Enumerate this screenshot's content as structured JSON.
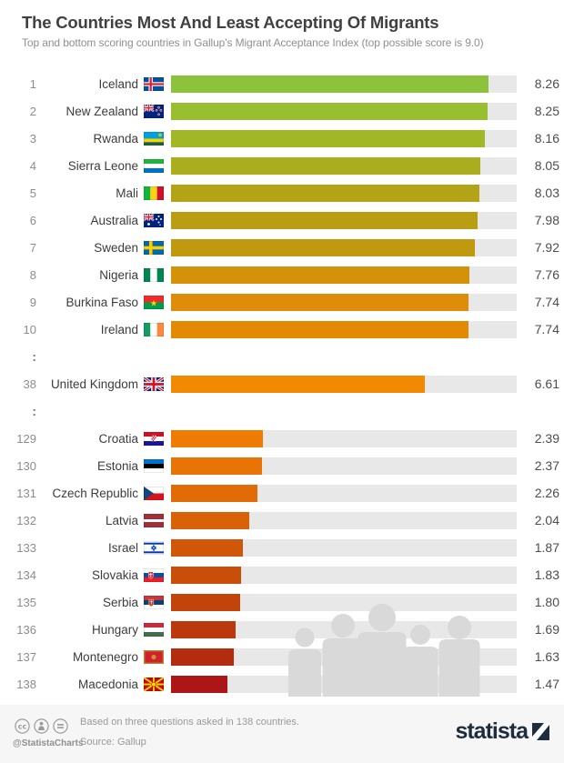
{
  "header": {
    "title": "The Countries Most And Least Accepting Of Migrants",
    "subtitle": "Top and bottom scoring countries in Gallup's Migrant Acceptance Index (top possible score is 9.0)"
  },
  "chart": {
    "max_value": 9.0,
    "track_color": "#e8e8e8",
    "rows": [
      {
        "rank": "1",
        "country": "Iceland",
        "flag": "iceland",
        "value": 8.26,
        "label": "8.26",
        "color": "#8dc33c"
      },
      {
        "rank": "2",
        "country": "New Zealand",
        "flag": "newzealand",
        "value": 8.25,
        "label": "8.25",
        "color": "#97bf2f"
      },
      {
        "rank": "3",
        "country": "Rwanda",
        "flag": "rwanda",
        "value": 8.16,
        "label": "8.16",
        "color": "#a1b725"
      },
      {
        "rank": "4",
        "country": "Sierra Leone",
        "flag": "sierraleone",
        "value": 8.05,
        "label": "8.05",
        "color": "#aaad1d"
      },
      {
        "rank": "5",
        "country": "Mali",
        "flag": "mali",
        "value": 8.03,
        "label": "8.03",
        "color": "#b2a317"
      },
      {
        "rank": "6",
        "country": "Australia",
        "flag": "australia",
        "value": 7.98,
        "label": "7.98",
        "color": "#b99d12"
      },
      {
        "rank": "7",
        "country": "Sweden",
        "flag": "sweden",
        "value": 7.92,
        "label": "7.92",
        "color": "#c0990e"
      },
      {
        "rank": "8",
        "country": "Nigeria",
        "flag": "nigeria",
        "value": 7.76,
        "label": "7.76",
        "color": "#d4920b"
      },
      {
        "rank": "9",
        "country": "Burkina Faso",
        "flag": "burkinafaso",
        "value": 7.74,
        "label": "7.74",
        "color": "#dd8d07"
      },
      {
        "rank": "10",
        "country": "Ireland",
        "flag": "ireland",
        "value": 7.74,
        "label": "7.74",
        "color": "#e38a05"
      },
      {
        "separator": true
      },
      {
        "rank": "38",
        "country": "United Kingdom",
        "flag": "uk",
        "value": 6.61,
        "label": "6.61",
        "color": "#f18a00"
      },
      {
        "separator": true
      },
      {
        "rank": "129",
        "country": "Croatia",
        "flag": "croatia",
        "value": 2.39,
        "label": "2.39",
        "color": "#ee7c04"
      },
      {
        "rank": "130",
        "country": "Estonia",
        "flag": "estonia",
        "value": 2.37,
        "label": "2.37",
        "color": "#e97406"
      },
      {
        "rank": "131",
        "country": "Czech Republic",
        "flag": "czech",
        "value": 2.26,
        "label": "2.26",
        "color": "#e16b07"
      },
      {
        "rank": "132",
        "country": "Latvia",
        "flag": "latvia",
        "value": 2.04,
        "label": "2.04",
        "color": "#d96108"
      },
      {
        "rank": "133",
        "country": "Israel",
        "flag": "israel",
        "value": 1.87,
        "label": "1.87",
        "color": "#d05709"
      },
      {
        "rank": "134",
        "country": "Slovakia",
        "flag": "slovakia",
        "value": 1.83,
        "label": "1.83",
        "color": "#c94e0a"
      },
      {
        "rank": "135",
        "country": "Serbia",
        "flag": "serbia",
        "value": 1.8,
        "label": "1.80",
        "color": "#c2440b"
      },
      {
        "rank": "136",
        "country": "Hungary",
        "flag": "hungary",
        "value": 1.69,
        "label": "1.69",
        "color": "#bb390d"
      },
      {
        "rank": "137",
        "country": "Montenegro",
        "flag": "montenegro",
        "value": 1.63,
        "label": "1.63",
        "color": "#b42c10"
      },
      {
        "rank": "138",
        "country": "Macedonia",
        "flag": "macedonia",
        "value": 1.47,
        "label": "1.47",
        "color": "#ac1616"
      }
    ]
  },
  "chart_data": {
    "type": "bar",
    "orientation": "horizontal",
    "title": "The Countries Most And Least Accepting Of Migrants",
    "subtitle": "Top and bottom scoring countries in Gallup's Migrant Acceptance Index (top possible score is 9.0)",
    "xlim": [
      0,
      9.0
    ],
    "grid": false,
    "ranks": [
      1,
      2,
      3,
      4,
      5,
      6,
      7,
      8,
      9,
      10,
      38,
      129,
      130,
      131,
      132,
      133,
      134,
      135,
      136,
      137,
      138
    ],
    "categories": [
      "Iceland",
      "New Zealand",
      "Rwanda",
      "Sierra Leone",
      "Mali",
      "Australia",
      "Sweden",
      "Nigeria",
      "Burkina Faso",
      "Ireland",
      "United Kingdom",
      "Croatia",
      "Estonia",
      "Czech Republic",
      "Latvia",
      "Israel",
      "Slovakia",
      "Serbia",
      "Hungary",
      "Montenegro",
      "Macedonia"
    ],
    "values": [
      8.26,
      8.25,
      8.16,
      8.05,
      8.03,
      7.98,
      7.92,
      7.76,
      7.74,
      7.74,
      6.61,
      2.39,
      2.37,
      2.26,
      2.04,
      1.87,
      1.83,
      1.8,
      1.69,
      1.63,
      1.47
    ],
    "note": "Based on three questions asked in 138 countries.",
    "source": "Gallup"
  },
  "footer": {
    "credit": "@StatistaCharts",
    "note": "Based on three questions asked in 138 countries.",
    "source": "Source: Gallup",
    "brand": "statista"
  },
  "separator_glyph": ":"
}
